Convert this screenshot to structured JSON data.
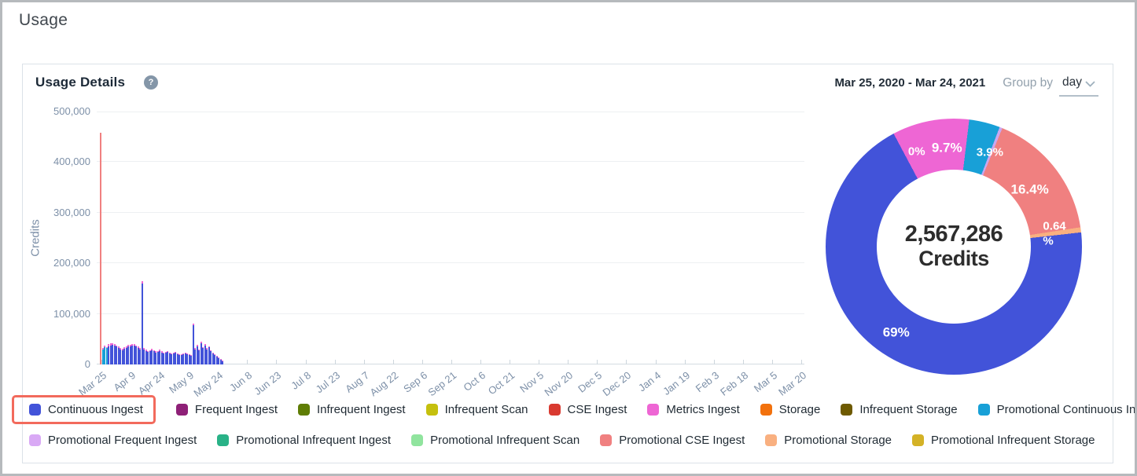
{
  "page": {
    "title": "Usage"
  },
  "card": {
    "title": "Usage Details",
    "help_glyph": "?",
    "date_range": "Mar 25, 2020 - Mar 24, 2021",
    "group_by_label": "Group by",
    "group_by_value": "day"
  },
  "chart_data": [
    {
      "type": "bar",
      "stacked": true,
      "ylabel": "Credits",
      "ylim": [
        0,
        500000
      ],
      "yticks": [
        "0",
        "100,000",
        "200,000",
        "300,000",
        "400,000",
        "500,000"
      ],
      "x_tick_labels": [
        "Mar 25",
        "Apr 9",
        "Apr 24",
        "May 9",
        "May 24",
        "Jun 8",
        "Jun 23",
        "Jul 8",
        "Jul 23",
        "Aug 7",
        "Aug 22",
        "Sep 6",
        "Sep 21",
        "Oct 6",
        "Oct 21",
        "Nov 5",
        "Nov 20",
        "Dec 5",
        "Dec 20",
        "Jan 4",
        "Jan 19",
        "Feb 3",
        "Feb 18",
        "Mar 5",
        "Mar 20"
      ],
      "grid": true,
      "series_key": {
        "ci": "Continuous Ingest",
        "mi": "Metrics Ingest",
        "pci": "Promotional Continuous Ingest",
        "pcse": "Promotional CSE Ingest"
      },
      "series_colors": {
        "ci": "#4253d9",
        "mi": "#ee66d4",
        "pci": "#18a0d7",
        "pcse": "#f08080"
      },
      "bars": [
        [
          [
            "pcse",
            458000
          ]
        ],
        [
          [
            "pci",
            30000
          ],
          [
            "mi",
            2500
          ]
        ],
        [
          [
            "pci",
            34000
          ],
          [
            "mi",
            3000
          ]
        ],
        [
          [
            "pci",
            32000
          ],
          [
            "mi",
            2500
          ]
        ],
        [
          [
            "ci",
            36000
          ],
          [
            "mi",
            4000
          ]
        ],
        [
          [
            "ci",
            38000
          ],
          [
            "mi",
            4000
          ]
        ],
        [
          [
            "ci",
            39000
          ],
          [
            "mi",
            3500
          ]
        ],
        [
          [
            "ci",
            37000
          ],
          [
            "mi",
            4000
          ]
        ],
        [
          [
            "ci",
            35000
          ],
          [
            "mi",
            3000
          ]
        ],
        [
          [
            "ci",
            33000
          ],
          [
            "mi",
            3000
          ]
        ],
        [
          [
            "ci",
            30000
          ],
          [
            "mi",
            2500
          ]
        ],
        [
          [
            "ci",
            28000
          ],
          [
            "mi",
            2500
          ]
        ],
        [
          [
            "ci",
            31000
          ],
          [
            "mi",
            3000
          ]
        ],
        [
          [
            "ci",
            33000
          ],
          [
            "mi",
            3000
          ]
        ],
        [
          [
            "ci",
            35000
          ],
          [
            "mi",
            3500
          ]
        ],
        [
          [
            "ci",
            36000
          ],
          [
            "mi",
            3000
          ]
        ],
        [
          [
            "ci",
            37000
          ],
          [
            "mi",
            3500
          ]
        ],
        [
          [
            "ci",
            38000
          ],
          [
            "mi",
            3000
          ]
        ],
        [
          [
            "ci",
            35000
          ],
          [
            "mi",
            3000
          ]
        ],
        [
          [
            "ci",
            33000
          ],
          [
            "mi",
            2500
          ]
        ],
        [
          [
            "ci",
            30000
          ],
          [
            "mi",
            2500
          ]
        ],
        [
          [
            "ci",
            160000
          ],
          [
            "mi",
            5000
          ]
        ],
        [
          [
            "ci",
            30000
          ],
          [
            "mi",
            2500
          ]
        ],
        [
          [
            "ci",
            27000
          ],
          [
            "mi",
            2000
          ]
        ],
        [
          [
            "ci",
            25000
          ],
          [
            "mi",
            2000
          ]
        ],
        [
          [
            "ci",
            26000
          ],
          [
            "mi",
            2000
          ]
        ],
        [
          [
            "ci",
            28000
          ],
          [
            "mi",
            2500
          ]
        ],
        [
          [
            "ci",
            26000
          ],
          [
            "mi",
            2000
          ]
        ],
        [
          [
            "ci",
            24000
          ],
          [
            "mi",
            2000
          ]
        ],
        [
          [
            "ci",
            25000
          ],
          [
            "mi",
            2000
          ]
        ],
        [
          [
            "ci",
            27000
          ],
          [
            "mi",
            2000
          ]
        ],
        [
          [
            "ci",
            24000
          ],
          [
            "mi",
            2000
          ]
        ],
        [
          [
            "ci",
            22000
          ],
          [
            "mi",
            1800
          ]
        ],
        [
          [
            "ci",
            23000
          ],
          [
            "mi",
            2000
          ]
        ],
        [
          [
            "ci",
            25000
          ],
          [
            "mi",
            2000
          ]
        ],
        [
          [
            "ci",
            22000
          ],
          [
            "mi",
            1800
          ]
        ],
        [
          [
            "ci",
            20000
          ],
          [
            "mi",
            1500
          ]
        ],
        [
          [
            "ci",
            21000
          ],
          [
            "mi",
            1800
          ]
        ],
        [
          [
            "ci",
            23000
          ],
          [
            "mi",
            2000
          ]
        ],
        [
          [
            "ci",
            21000
          ],
          [
            "mi",
            1500
          ]
        ],
        [
          [
            "ci",
            19000
          ],
          [
            "mi",
            1500
          ]
        ],
        [
          [
            "ci",
            18000
          ],
          [
            "mi",
            1500
          ]
        ],
        [
          [
            "ci",
            20000
          ],
          [
            "mi",
            1500
          ]
        ],
        [
          [
            "ci",
            22000
          ],
          [
            "mi",
            1800
          ]
        ],
        [
          [
            "ci",
            20000
          ],
          [
            "mi",
            1500
          ]
        ],
        [
          [
            "ci",
            18000
          ],
          [
            "mi",
            1500
          ]
        ],
        [
          [
            "ci",
            17000
          ],
          [
            "mi",
            1200
          ]
        ],
        [
          [
            "ci",
            78000
          ],
          [
            "mi",
            3000
          ]
        ],
        [
          [
            "ci",
            30000
          ],
          [
            "mi",
            2500
          ]
        ],
        [
          [
            "ci",
            36000
          ],
          [
            "mi",
            3000
          ]
        ],
        [
          [
            "ci",
            28000
          ],
          [
            "mi",
            2200
          ]
        ],
        [
          [
            "ci",
            42000
          ],
          [
            "mi",
            3500
          ]
        ],
        [
          [
            "ci",
            32000
          ],
          [
            "mi",
            2500
          ]
        ],
        [
          [
            "ci",
            38000
          ],
          [
            "mi",
            3000
          ]
        ],
        [
          [
            "ci",
            30000
          ],
          [
            "mi",
            2500
          ]
        ],
        [
          [
            "ci",
            34000
          ],
          [
            "mi",
            2500
          ]
        ],
        [
          [
            "ci",
            26000
          ],
          [
            "mi",
            2000
          ]
        ],
        [
          [
            "ci",
            22000
          ],
          [
            "mi",
            1800
          ]
        ],
        [
          [
            "ci",
            19000
          ],
          [
            "mi",
            1500
          ]
        ],
        [
          [
            "ci",
            16000
          ],
          [
            "mi",
            1200
          ]
        ],
        [
          [
            "ci",
            13000
          ],
          [
            "mi",
            1000
          ]
        ],
        [
          [
            "ci",
            10000
          ],
          [
            "mi",
            800
          ]
        ],
        [
          [
            "ci",
            7000
          ],
          [
            "mi",
            600
          ]
        ]
      ]
    },
    {
      "type": "pie",
      "center_value": "2,567,286",
      "center_unit": "Credits",
      "start_angle": -28,
      "slices": [
        {
          "label": "Metrics Ingest",
          "pct": 9.7,
          "color": "#ee66d4"
        },
        {
          "label": "Promotional Continuous Ingest",
          "pct": 3.9,
          "color": "#18a0d7"
        },
        {
          "label": "Promotional Frequent Ingest",
          "pct": 0.36,
          "color": "#c9a7f0"
        },
        {
          "label": "Promotional CSE Ingest",
          "pct": 16.4,
          "color": "#f08080"
        },
        {
          "label": "Promotional Storage",
          "pct": 0.64,
          "color": "#f9b080"
        },
        {
          "label": "Continuous Ingest",
          "pct": 69.0,
          "color": "#4253d9"
        }
      ],
      "pct_labels": [
        {
          "text": "0%",
          "angle": -21.5,
          "r": 129,
          "size": 15
        },
        {
          "text": "9.7%",
          "angle": -4,
          "r": 126,
          "size": 17
        },
        {
          "text": "3.9%",
          "angle": 21,
          "r": 128,
          "size": 15
        },
        {
          "text": "16.4%",
          "angle": 53,
          "r": 121,
          "size": 17
        },
        {
          "text": "0.64 %",
          "angle": 83,
          "r": 129,
          "size": 15,
          "wrap": true
        },
        {
          "text": "69%",
          "angle": 214,
          "r": 131,
          "size": 17
        }
      ]
    }
  ],
  "legend": {
    "highlight_color": "#f26a5c",
    "rows": [
      [
        {
          "label": "Continuous Ingest",
          "color": "#4253d9",
          "highlighted": true
        },
        {
          "label": "Frequent Ingest",
          "color": "#8e2077"
        },
        {
          "label": "Infrequent Ingest",
          "color": "#5f7d05"
        },
        {
          "label": "Infrequent Scan",
          "color": "#c5c00e"
        },
        {
          "label": "CSE Ingest",
          "color": "#d93a30"
        },
        {
          "label": "Metrics Ingest",
          "color": "#ee66d4"
        },
        {
          "label": "Storage",
          "color": "#f2710d"
        },
        {
          "label": "Infrequent Storage",
          "color": "#6e5a00"
        },
        {
          "label": "Promotional Continuous Ingest",
          "color": "#18a0d7"
        }
      ],
      [
        {
          "label": "Promotional Frequent Ingest",
          "color": "#d9a9f5"
        },
        {
          "label": "Promotional Infrequent Ingest",
          "color": "#29b287"
        },
        {
          "label": "Promotional Infrequent Scan",
          "color": "#90e49e"
        },
        {
          "label": "Promotional CSE Ingest",
          "color": "#f08080"
        },
        {
          "label": "Promotional Storage",
          "color": "#f9b080"
        },
        {
          "label": "Promotional Infrequent Storage",
          "color": "#d4b226"
        }
      ]
    ]
  }
}
